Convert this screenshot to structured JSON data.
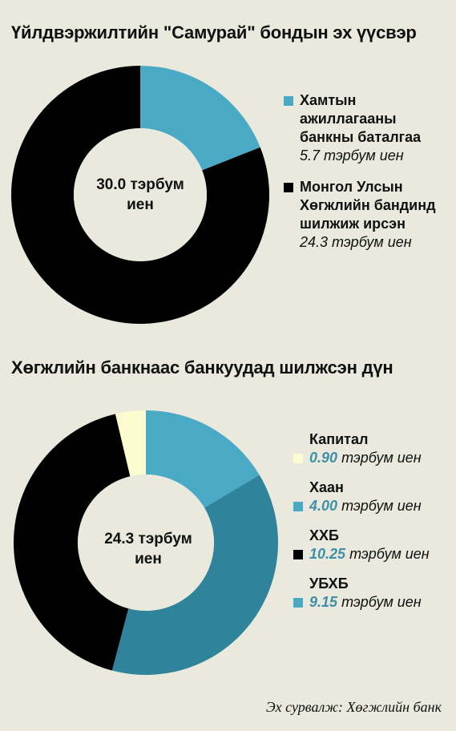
{
  "colors": {
    "background": "#eae9dd",
    "light_blue": "#4aa9c4",
    "dark_teal": "#2f839a",
    "black": "#000000",
    "cream": "#fdfbd0",
    "number_accent": "#3f8fa6"
  },
  "chart_data": [
    {
      "type": "pie",
      "title": "Үйлдвэржилтийн \"Самурай\" бондын эх үүсвэр",
      "center_label": [
        "30.0 тэрбум",
        "иен"
      ],
      "unit": "тэрбум иен",
      "legend_placement": "right",
      "slices": [
        {
          "name": "Хамтын ажиллагааны банкны баталгаа",
          "name_lines": [
            "Хамтын",
            "ажиллагааны",
            "банкны баталгаа"
          ],
          "value": 5.7,
          "value_label": "5.7 тэрбум иен",
          "color": "#4aa9c4"
        },
        {
          "name": "Монгол Улсын Хөгжлийн бандинд шилжиж ирсэн",
          "name_lines": [
            "Монгол Улсын",
            "Хөгжлийн бандинд",
            "шилжиж ирсэн"
          ],
          "value": 24.3,
          "value_label": "24.3 тэрбум иен",
          "color": "#000000"
        }
      ]
    },
    {
      "type": "pie",
      "title": "Хөгжлийн банкнаас банкуудад шилжсэн дүн",
      "center_label": [
        "24.3 тэрбум",
        "иен"
      ],
      "unit": "тэрбум иен",
      "legend_placement": "right",
      "slices": [
        {
          "name": "Хаан",
          "value": 4.0,
          "value_text": "4.00",
          "color": "#4aa9c4"
        },
        {
          "name": "УБХБ",
          "value": 9.15,
          "value_text": "9.15",
          "color": "#2f839a"
        },
        {
          "name": "ХХБ",
          "value": 10.25,
          "value_text": "10.25",
          "color": "#000000"
        },
        {
          "name": "Капитал",
          "value": 0.9,
          "value_text": "0.90",
          "color": "#fdfbd0"
        }
      ],
      "legend_order": [
        "Капитал",
        "Хаан",
        "ХХБ",
        "УБХБ"
      ]
    }
  ],
  "source": "Эх сурвалж: Хөгжлийн банк"
}
